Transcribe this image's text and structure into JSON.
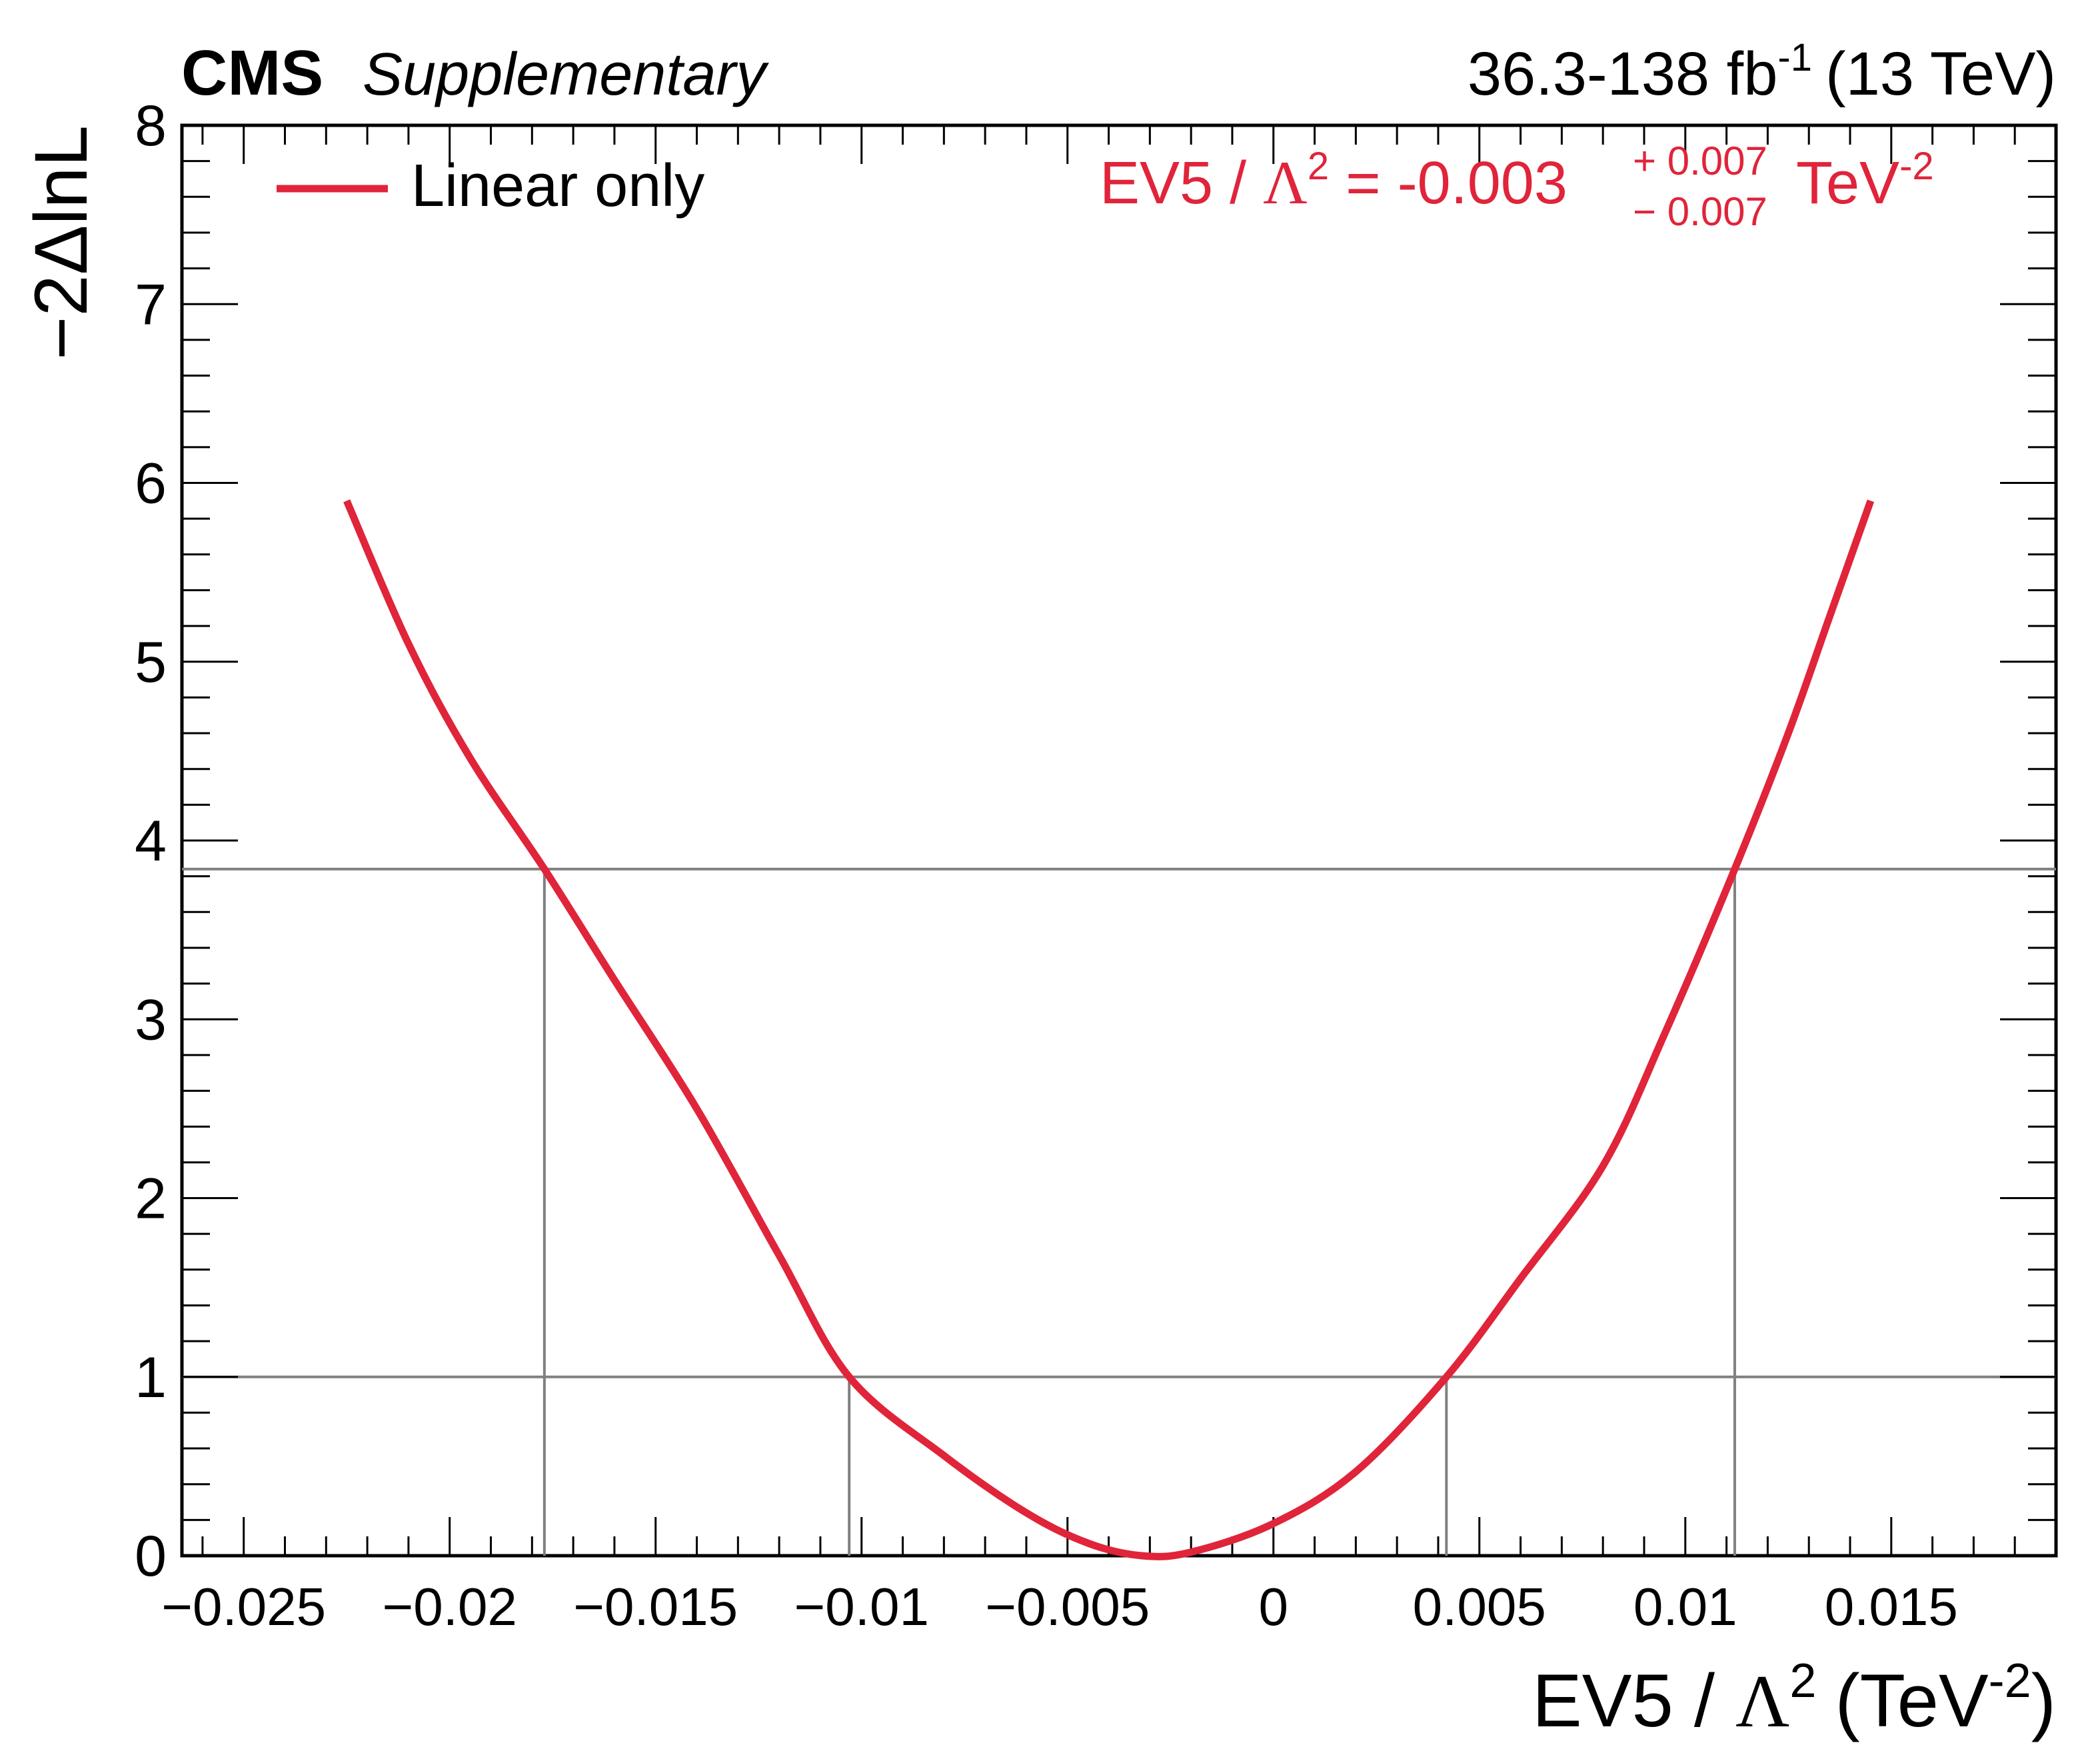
{
  "header": {
    "experiment": "CMS",
    "label": "Supplementary",
    "lumi_text": "36.3-138 fb",
    "lumi_exp": "-1",
    "energy": "(13 TeV)"
  },
  "colors": {
    "curve": "#e0243a",
    "reference_lines": "#808080",
    "axes": "#000000"
  },
  "legend": {
    "entry": "Linear only"
  },
  "result": {
    "param": "EV5",
    "lambda_symbol": "Λ",
    "lambda_exp": "2",
    "central": "-0.003",
    "plus": "+ 0.007",
    "minus": "− 0.007",
    "unit_base": "TeV",
    "unit_exp": "-2"
  },
  "chart_data": {
    "type": "line",
    "xlabel": {
      "param": "EV5",
      "lambda_symbol": "Λ",
      "lambda_exp": "2",
      "unit_open": "(TeV",
      "unit_exp": "-2",
      "unit_close": ")"
    },
    "ylabel": "−2ΔlnL",
    "xlim": [
      -0.0265,
      0.019
    ],
    "ylim": [
      0,
      8
    ],
    "x_ticks": [
      -0.025,
      -0.02,
      -0.015,
      -0.01,
      -0.005,
      0,
      0.005,
      0.01,
      0.015
    ],
    "x_tick_labels": [
      "−0.025",
      "−0.02",
      "−0.015",
      "−0.01",
      "−0.005",
      "0",
      "0.005",
      "0.01",
      "0.015"
    ],
    "y_ticks": [
      0,
      1,
      2,
      3,
      4,
      5,
      6,
      7,
      8
    ],
    "y_tick_labels": [
      "0",
      "1",
      "2",
      "3",
      "4",
      "5",
      "6",
      "7",
      "8"
    ],
    "horizontal_lines": [
      1.0,
      3.84
    ],
    "vertical_lines": [
      {
        "x": -0.0177,
        "ymax": 3.84
      },
      {
        "x": -0.0103,
        "ymax": 1.0
      },
      {
        "x": 0.0042,
        "ymax": 1.0
      },
      {
        "x": 0.0112,
        "ymax": 3.84
      }
    ],
    "series": [
      {
        "name": "Linear only",
        "x": [
          -0.0225,
          -0.021,
          -0.0195,
          -0.0177,
          -0.016,
          -0.014,
          -0.012,
          -0.0103,
          -0.008,
          -0.006,
          -0.0045,
          -0.0032,
          -0.002,
          0.0,
          0.002,
          0.0042,
          0.006,
          0.008,
          0.0095,
          0.0112,
          0.0125,
          0.0135,
          0.0145
        ],
        "y": [
          5.9,
          5.1,
          4.46,
          3.84,
          3.22,
          2.5,
          1.68,
          1.0,
          0.56,
          0.24,
          0.07,
          0.0,
          0.02,
          0.18,
          0.47,
          1.0,
          1.55,
          2.18,
          2.92,
          3.84,
          4.6,
          5.25,
          5.9
        ]
      }
    ]
  }
}
